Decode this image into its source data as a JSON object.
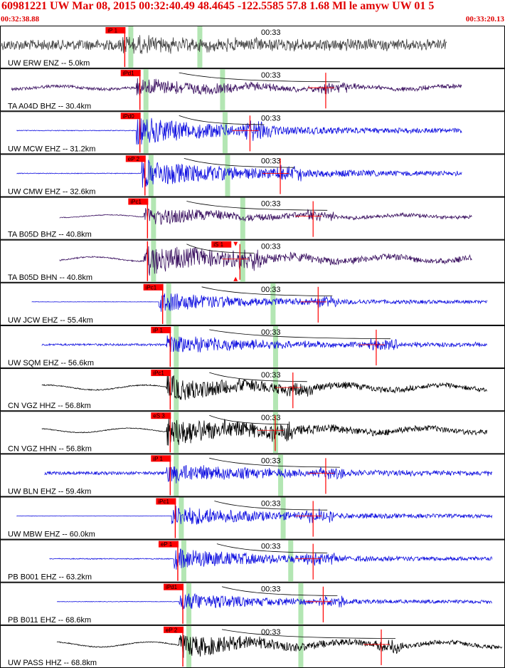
{
  "header": {
    "title": "60981221 UW Mar 08, 2015 00:32:40.49   48.4645 -122.5585 57.8 1.68 Ml le amyw UW 01   5",
    "start_time": "00:32:38.88",
    "end_time": "00:33:20.13",
    "title_color": "#e00000"
  },
  "chart_data": {
    "type": "line",
    "x_range": [
      "00:32:38.88",
      "00:33:20.13"
    ],
    "x_tick_label": "00:33",
    "pick_color": "#ff0000",
    "predicted_window_color": "#b3e6b3",
    "traces": [
      {
        "station": "UW ERW ENZ -- 5.0km",
        "pick": "iP 1",
        "color": "#404040",
        "amp": 0.42,
        "noise": 0.85,
        "start": 0.0,
        "end": 0.885,
        "p": 0.24,
        "win": 0.395,
        "s": null,
        "smark": null,
        "lf": 0.0
      },
      {
        "station": "TA A04D BHZ -- 30.4km",
        "pick": "iPd1",
        "color": "#3a1060",
        "amp": 0.55,
        "noise": 0.18,
        "start": 0.02,
        "end": 0.915,
        "p": 0.27,
        "win": 0.44,
        "s": 0.645,
        "smark": null,
        "lf": 0.35
      },
      {
        "station": "UW MCW EHZ -- 31.2km",
        "pick": "iPd0",
        "color": "#1010e0",
        "amp": 0.85,
        "noise": 0.03,
        "start": 0.03,
        "end": 0.915,
        "p": 0.27,
        "win": 0.445,
        "s": 0.495,
        "smark": null,
        "lf": 0.0
      },
      {
        "station": "UW CMW EHZ -- 32.6km",
        "pick": "eP 2",
        "color": "#1010e0",
        "amp": 0.85,
        "noise": 0.03,
        "start": 0.03,
        "end": 0.915,
        "p": 0.28,
        "win": 0.45,
        "s": 0.555,
        "smark": null,
        "lf": 0.0
      },
      {
        "station": "TA B05D BHZ -- 40.8km",
        "pick": "iPc1",
        "color": "#3a1060",
        "amp": 0.55,
        "noise": 0.05,
        "start": 0.115,
        "end": 0.935,
        "p": 0.285,
        "win": 0.48,
        "s": 0.62,
        "smark": null,
        "lf": 0.3
      },
      {
        "station": "TA B05D BHN -- 40.8km",
        "pick": "iS 1",
        "color": "#3a1060",
        "amp": 0.9,
        "noise": 0.05,
        "start": 0.115,
        "end": 0.935,
        "p": 0.285,
        "win": 0.48,
        "s": 0.475,
        "smark": "S",
        "lf": 0.3
      },
      {
        "station": "UW JCW EHZ -- 55.4km",
        "pick": "iPc1",
        "color": "#1010e0",
        "amp": 0.6,
        "noise": 0.02,
        "start": 0.06,
        "end": 0.965,
        "p": 0.315,
        "win": 0.54,
        "s": 0.63,
        "smark": null,
        "lf": 0.0
      },
      {
        "station": "UW SQM EHZ -- 56.6km",
        "pick": "iP 1",
        "color": "#1010e0",
        "amp": 0.6,
        "noise": 0.12,
        "start": 0.08,
        "end": 0.965,
        "p": 0.33,
        "win": 0.545,
        "s": 0.745,
        "smark": null,
        "lf": 0.0
      },
      {
        "station": "CN VGZ HHZ -- 56.8km",
        "pick": "iPc1",
        "color": "#000000",
        "amp": 0.75,
        "noise": 0.05,
        "start": 0.08,
        "end": 0.965,
        "p": 0.33,
        "win": 0.545,
        "s": 0.58,
        "smark": null,
        "lf": 0.4
      },
      {
        "station": "CN VGZ HHN -- 56.8km",
        "pick": "eS 3",
        "color": "#000000",
        "amp": 0.9,
        "noise": 0.03,
        "start": 0.08,
        "end": 0.965,
        "p": 0.33,
        "win": 0.545,
        "s": 0.545,
        "smark": null,
        "lf": 0.3
      },
      {
        "station": "UW BLN EHZ -- 59.4km",
        "pick": "iP 1",
        "color": "#1010e0",
        "amp": 0.6,
        "noise": 0.18,
        "start": 0.085,
        "end": 0.975,
        "p": 0.33,
        "win": 0.555,
        "s": 0.645,
        "smark": null,
        "lf": 0.0
      },
      {
        "station": "UW MBW EHZ -- 60.0km",
        "pick": "iPc1",
        "color": "#1010e0",
        "amp": 0.65,
        "noise": 0.02,
        "start": 0.03,
        "end": 0.975,
        "p": 0.34,
        "win": 0.56,
        "s": 0.62,
        "smark": null,
        "lf": 0.0
      },
      {
        "station": "PB B001 EHZ -- 63.2km",
        "pick": "eP 1",
        "color": "#1010e0",
        "amp": 0.65,
        "noise": 0.05,
        "start": 0.095,
        "end": 0.975,
        "p": 0.345,
        "win": 0.575,
        "s": 0.62,
        "smark": null,
        "lf": 0.0
      },
      {
        "station": "PB B011 EHZ -- 68.6km",
        "pick": "iPd1",
        "color": "#1010e0",
        "amp": 0.55,
        "noise": 0.03,
        "start": 0.11,
        "end": 0.975,
        "p": 0.355,
        "win": 0.595,
        "s": 0.64,
        "smark": null,
        "lf": 0.0
      },
      {
        "station": "UW PASS HHZ -- 68.8km",
        "pick": "eP 2",
        "color": "#000000",
        "amp": 0.7,
        "noise": 0.05,
        "start": 0.11,
        "end": 0.995,
        "p": 0.355,
        "win": 0.595,
        "s": 0.755,
        "smark": null,
        "lf": 0.45
      }
    ]
  }
}
